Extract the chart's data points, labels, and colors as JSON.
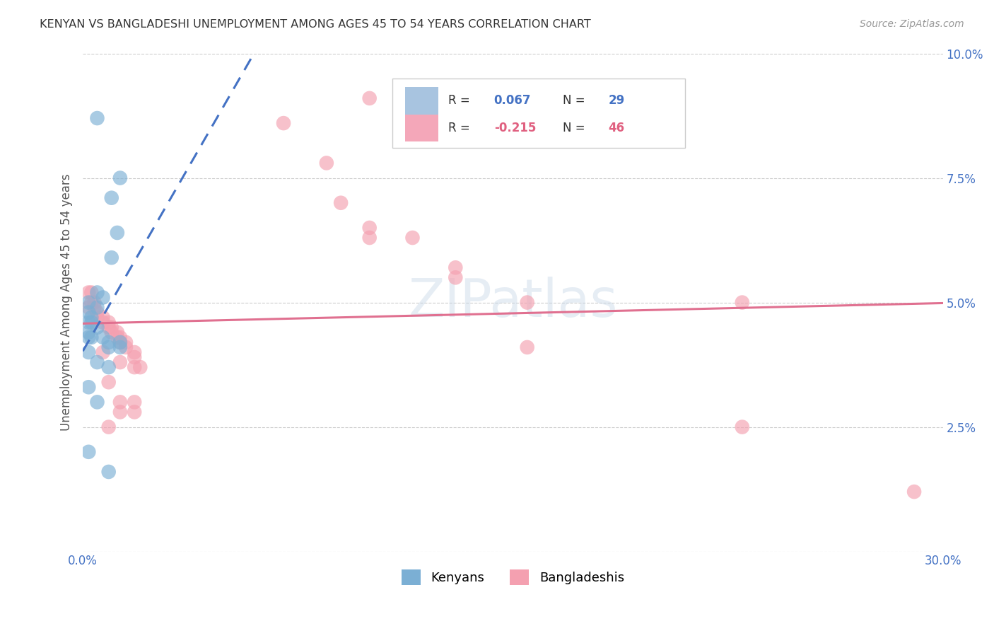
{
  "title": "KENYAN VS BANGLADESHI UNEMPLOYMENT AMONG AGES 45 TO 54 YEARS CORRELATION CHART",
  "source": "Source: ZipAtlas.com",
  "ylabel": "Unemployment Among Ages 45 to 54 years",
  "xlim": [
    0.0,
    0.3
  ],
  "ylim": [
    0.0,
    0.1
  ],
  "xticks": [
    0.0,
    0.05,
    0.1,
    0.15,
    0.2,
    0.25,
    0.3
  ],
  "xticklabels": [
    "0.0%",
    "",
    "",
    "",
    "",
    "",
    "30.0%"
  ],
  "yticks": [
    0.0,
    0.025,
    0.05,
    0.075,
    0.1
  ],
  "yticklabels": [
    "",
    "2.5%",
    "5.0%",
    "7.5%",
    "10.0%"
  ],
  "kenyan_color": "#7bafd4",
  "bangladeshi_color": "#f4a0b0",
  "kenyan_line_color": "#4472c4",
  "bangladeshi_line_color": "#e07090",
  "watermark": "ZIPatlas",
  "kenyan_points": [
    [
      0.005,
      0.087
    ],
    [
      0.013,
      0.075
    ],
    [
      0.01,
      0.071
    ],
    [
      0.012,
      0.064
    ],
    [
      0.01,
      0.059
    ],
    [
      0.005,
      0.052
    ],
    [
      0.007,
      0.051
    ],
    [
      0.002,
      0.05
    ],
    [
      0.005,
      0.049
    ],
    [
      0.002,
      0.048
    ],
    [
      0.003,
      0.047
    ],
    [
      0.003,
      0.046
    ],
    [
      0.002,
      0.046
    ],
    [
      0.005,
      0.045
    ],
    [
      0.002,
      0.044
    ],
    [
      0.003,
      0.043
    ],
    [
      0.002,
      0.043
    ],
    [
      0.007,
      0.043
    ],
    [
      0.009,
      0.042
    ],
    [
      0.013,
      0.042
    ],
    [
      0.009,
      0.041
    ],
    [
      0.013,
      0.041
    ],
    [
      0.002,
      0.04
    ],
    [
      0.005,
      0.038
    ],
    [
      0.009,
      0.037
    ],
    [
      0.002,
      0.033
    ],
    [
      0.005,
      0.03
    ],
    [
      0.002,
      0.02
    ],
    [
      0.009,
      0.016
    ]
  ],
  "bangladeshi_points": [
    [
      0.002,
      0.052
    ],
    [
      0.003,
      0.052
    ],
    [
      0.003,
      0.05
    ],
    [
      0.004,
      0.05
    ],
    [
      0.004,
      0.049
    ],
    [
      0.002,
      0.049
    ],
    [
      0.005,
      0.048
    ],
    [
      0.005,
      0.047
    ],
    [
      0.007,
      0.047
    ],
    [
      0.007,
      0.046
    ],
    [
      0.009,
      0.046
    ],
    [
      0.009,
      0.045
    ],
    [
      0.01,
      0.045
    ],
    [
      0.01,
      0.044
    ],
    [
      0.012,
      0.044
    ],
    [
      0.012,
      0.043
    ],
    [
      0.013,
      0.043
    ],
    [
      0.013,
      0.042
    ],
    [
      0.015,
      0.042
    ],
    [
      0.015,
      0.041
    ],
    [
      0.007,
      0.04
    ],
    [
      0.018,
      0.04
    ],
    [
      0.018,
      0.039
    ],
    [
      0.013,
      0.038
    ],
    [
      0.018,
      0.037
    ],
    [
      0.02,
      0.037
    ],
    [
      0.009,
      0.034
    ],
    [
      0.013,
      0.03
    ],
    [
      0.018,
      0.03
    ],
    [
      0.013,
      0.028
    ],
    [
      0.018,
      0.028
    ],
    [
      0.009,
      0.025
    ],
    [
      0.1,
      0.091
    ],
    [
      0.07,
      0.086
    ],
    [
      0.085,
      0.078
    ],
    [
      0.09,
      0.07
    ],
    [
      0.1,
      0.065
    ],
    [
      0.1,
      0.063
    ],
    [
      0.115,
      0.063
    ],
    [
      0.13,
      0.057
    ],
    [
      0.13,
      0.055
    ],
    [
      0.155,
      0.05
    ],
    [
      0.23,
      0.05
    ],
    [
      0.155,
      0.041
    ],
    [
      0.23,
      0.025
    ],
    [
      0.29,
      0.012
    ]
  ]
}
